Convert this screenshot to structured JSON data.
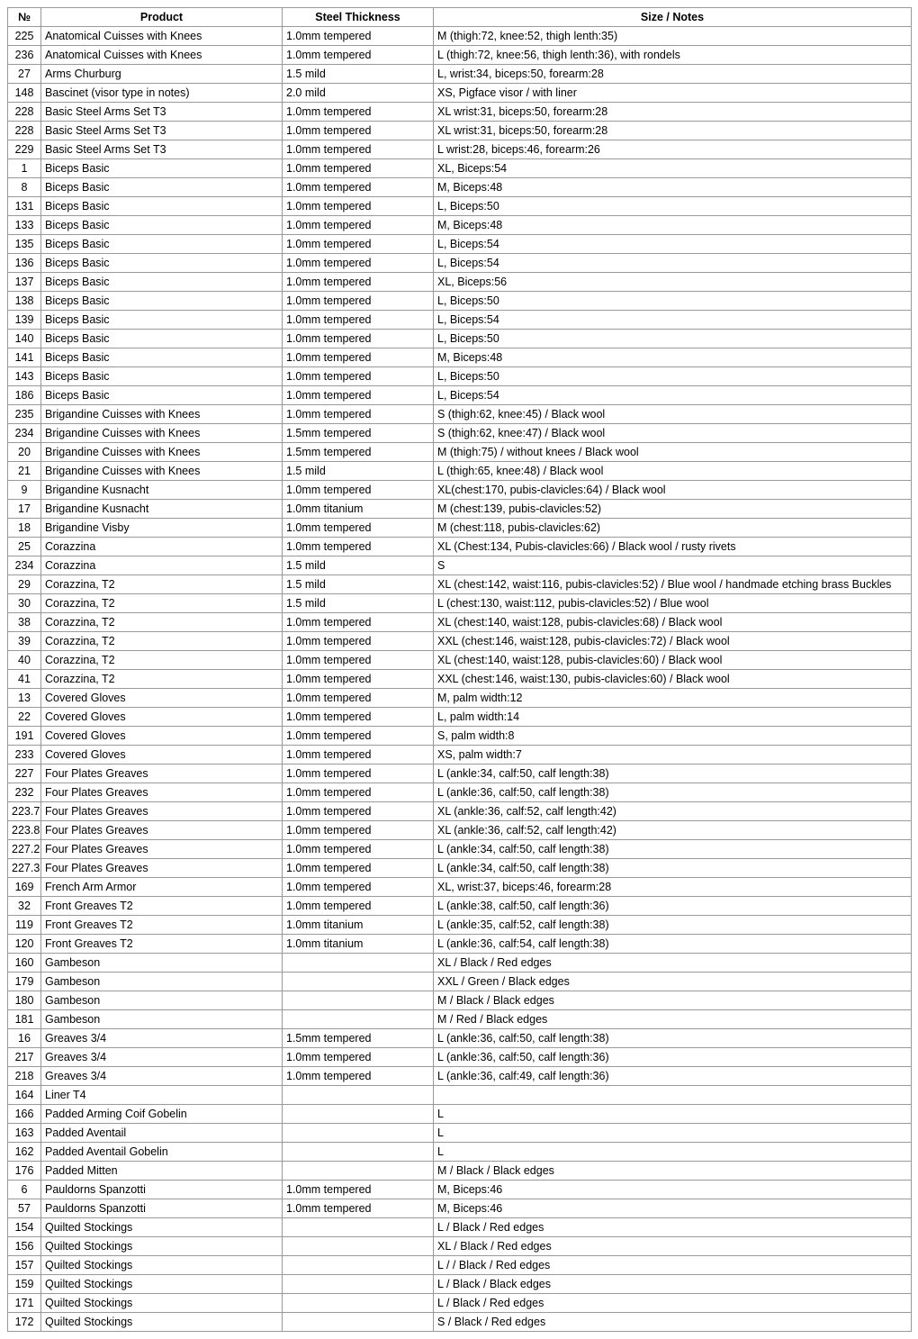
{
  "columns": [
    "№",
    "Product",
    "Steel Thickness",
    "Size / Notes"
  ],
  "rows": [
    [
      "225",
      "Anatomical Cuisses with Knees",
      "1.0mm tempered",
      "M (thigh:72, knee:52, thigh lenth:35)"
    ],
    [
      "236",
      "Anatomical Cuisses with Knees",
      "1.0mm tempered",
      "L (thigh:72, knee:56, thigh lenth:36), with rondels"
    ],
    [
      "27",
      "Arms Churburg",
      "1.5 mild",
      "L, wrist:34, biceps:50, forearm:28"
    ],
    [
      "148",
      "Bascinet (visor type in notes)",
      "2.0 mild",
      "XS, Pigface visor / with liner"
    ],
    [
      "228",
      "Basic Steel Arms Set T3",
      "1.0mm tempered",
      "XL wrist:31, biceps:50, forearm:28"
    ],
    [
      "228",
      "Basic Steel Arms Set T3",
      "1.0mm tempered",
      "XL wrist:31, biceps:50, forearm:28"
    ],
    [
      "229",
      "Basic Steel Arms Set T3",
      "1.0mm tempered",
      "L wrist:28, biceps:46, forearm:26"
    ],
    [
      "1",
      "Biceps Basic",
      "1.0mm tempered",
      "XL, Biceps:54"
    ],
    [
      "8",
      "Biceps Basic",
      "1.0mm tempered",
      "M, Biceps:48"
    ],
    [
      "131",
      "Biceps Basic",
      "1.0mm tempered",
      "L, Biceps:50"
    ],
    [
      "133",
      "Biceps Basic",
      "1.0mm tempered",
      "M, Biceps:48"
    ],
    [
      "135",
      "Biceps Basic",
      "1.0mm tempered",
      "L, Biceps:54"
    ],
    [
      "136",
      "Biceps Basic",
      "1.0mm tempered",
      "L, Biceps:54"
    ],
    [
      "137",
      "Biceps Basic",
      "1.0mm tempered",
      "XL, Biceps:56"
    ],
    [
      "138",
      "Biceps Basic",
      "1.0mm tempered",
      "L, Biceps:50"
    ],
    [
      "139",
      "Biceps Basic",
      "1.0mm tempered",
      "L, Biceps:54"
    ],
    [
      "140",
      "Biceps Basic",
      "1.0mm tempered",
      "L, Biceps:50"
    ],
    [
      "141",
      "Biceps Basic",
      "1.0mm tempered",
      "M, Biceps:48"
    ],
    [
      "143",
      "Biceps Basic",
      "1.0mm tempered",
      "L, Biceps:50"
    ],
    [
      "186",
      "Biceps Basic",
      "1.0mm tempered",
      "L, Biceps:54"
    ],
    [
      "235",
      "Brigandine Cuisses with Knees",
      "1.0mm tempered",
      "S (thigh:62, knee:45) / Black wool"
    ],
    [
      "234",
      "Brigandine Cuisses with Knees",
      "1.5mm tempered",
      "S (thigh:62, knee:47) / Black wool"
    ],
    [
      "20",
      "Brigandine Cuisses with Knees",
      "1.5mm tempered",
      "M (thigh:75) / without knees / Black wool"
    ],
    [
      "21",
      "Brigandine Cuisses with Knees",
      "1.5 mild",
      "L (thigh:65, knee:48) / Black wool"
    ],
    [
      "9",
      "Brigandine Kusnacht",
      "1.0mm tempered",
      "XL(chest:170, pubis-clavicles:64) / Black wool"
    ],
    [
      "17",
      "Brigandine Kusnacht",
      "1.0mm titanium",
      "M (chest:139, pubis-clavicles:52)"
    ],
    [
      "18",
      "Brigandine Visby",
      "1.0mm tempered",
      "M (chest:118, pubis-clavicles:62)"
    ],
    [
      "25",
      "Corazzina",
      "1.0mm tempered",
      "XL (Chest:134, Pubis-clavicles:66) / Black wool / rusty rivets"
    ],
    [
      "234",
      "Corazzina",
      "1.5 mild",
      "S"
    ],
    [
      "29",
      "Corazzina, T2",
      "1.5 mild",
      "XL (chest:142, waist:116, pubis-clavicles:52) / Blue wool / handmade etching brass Buckles"
    ],
    [
      "30",
      "Corazzina, T2",
      "1.5 mild",
      "L (chest:130, waist:112, pubis-clavicles:52) / Blue wool"
    ],
    [
      "38",
      "Corazzina, T2",
      "1.0mm tempered",
      "XL (chest:140, waist:128, pubis-clavicles:68) / Black wool"
    ],
    [
      "39",
      "Corazzina, T2",
      "1.0mm tempered",
      "XXL (chest:146, waist:128, pubis-clavicles:72) / Black wool"
    ],
    [
      "40",
      "Corazzina, T2",
      "1.0mm tempered",
      "XL (chest:140, waist:128, pubis-clavicles:60) / Black wool"
    ],
    [
      "41",
      "Corazzina, T2",
      "1.0mm tempered",
      "XXL (chest:146, waist:130, pubis-clavicles:60) / Black wool"
    ],
    [
      "13",
      "Covered Gloves",
      "1.0mm tempered",
      "M, palm width:12"
    ],
    [
      "22",
      "Covered Gloves",
      "1.0mm tempered",
      "L, palm width:14"
    ],
    [
      "191",
      "Covered Gloves",
      "1.0mm tempered",
      "S, palm width:8"
    ],
    [
      "233",
      "Covered Gloves",
      "1.0mm tempered",
      "XS, palm width:7"
    ],
    [
      "227",
      "Four Plates Greaves",
      "1.0mm tempered",
      "L (ankle:34, calf:50, calf length:38)"
    ],
    [
      "232",
      "Four Plates Greaves",
      "1.0mm tempered",
      "L (ankle:36, calf:50, calf length:38)"
    ],
    [
      "223.7",
      "Four Plates Greaves",
      "1.0mm tempered",
      "XL (ankle:36, calf:52, calf length:42)"
    ],
    [
      "223.8",
      "Four Plates Greaves",
      "1.0mm tempered",
      "XL (ankle:36, calf:52, calf length:42)"
    ],
    [
      "227.2",
      "Four Plates Greaves",
      "1.0mm tempered",
      "L (ankle:34, calf:50, calf length:38)"
    ],
    [
      "227.3",
      "Four Plates Greaves",
      "1.0mm tempered",
      "L (ankle:34, calf:50, calf length:38)"
    ],
    [
      "169",
      "French Arm Armor",
      "1.0mm tempered",
      "XL,  wrist:37, biceps:46, forearm:28"
    ],
    [
      "32",
      "Front Greaves T2",
      "1.0mm tempered",
      "L (ankle:38, calf:50, calf length:36)"
    ],
    [
      "119",
      "Front Greaves T2",
      "1.0mm titanium",
      "L (ankle:35, calf:52, calf length:38)"
    ],
    [
      "120",
      "Front Greaves T2",
      "1.0mm titanium",
      "L (ankle:36, calf:54, calf length:38)"
    ],
    [
      "160",
      "Gambeson",
      "",
      "XL / Black / Red edges"
    ],
    [
      "179",
      "Gambeson",
      "",
      "XXL / Green / Black edges"
    ],
    [
      "180",
      "Gambeson",
      "",
      "M / Black / Black edges"
    ],
    [
      "181",
      "Gambeson",
      "",
      "M / Red / Black edges"
    ],
    [
      "16",
      "Greaves 3/4",
      "1.5mm tempered",
      "L (ankle:36, calf:50, calf length:38)"
    ],
    [
      "217",
      "Greaves 3/4",
      "1.0mm tempered",
      "L (ankle:36, calf:50, calf length:36)"
    ],
    [
      "218",
      "Greaves 3/4",
      "1.0mm tempered",
      "L (ankle:36, calf:49, calf length:36)"
    ],
    [
      "164",
      "Liner T4",
      "",
      ""
    ],
    [
      "166",
      "Padded Arming Coif Gobelin",
      "",
      "L"
    ],
    [
      "163",
      "Padded Aventail",
      "",
      "L"
    ],
    [
      "162",
      "Padded Aventail Gobelin",
      "",
      "L"
    ],
    [
      "176",
      "Padded Mitten",
      "",
      "M / Black / Black edges"
    ],
    [
      "6",
      "Pauldorns Spanzotti",
      "1.0mm tempered",
      "M, Biceps:46"
    ],
    [
      "57",
      "Pauldorns Spanzotti",
      "1.0mm tempered",
      "M, Biceps:46"
    ],
    [
      "154",
      "Quilted Stockings",
      "",
      "L / Black / Red edges"
    ],
    [
      "156",
      "Quilted Stockings",
      "",
      "XL / Black / Red edges"
    ],
    [
      "157",
      "Quilted Stockings",
      "",
      "L /  / Black / Red edges"
    ],
    [
      "159",
      "Quilted Stockings",
      "",
      "L / Black / Black edges"
    ],
    [
      "171",
      "Quilted Stockings",
      "",
      "L / Black / Red edges"
    ],
    [
      "172",
      "Quilted Stockings",
      "",
      "S / Black / Red edges"
    ]
  ]
}
